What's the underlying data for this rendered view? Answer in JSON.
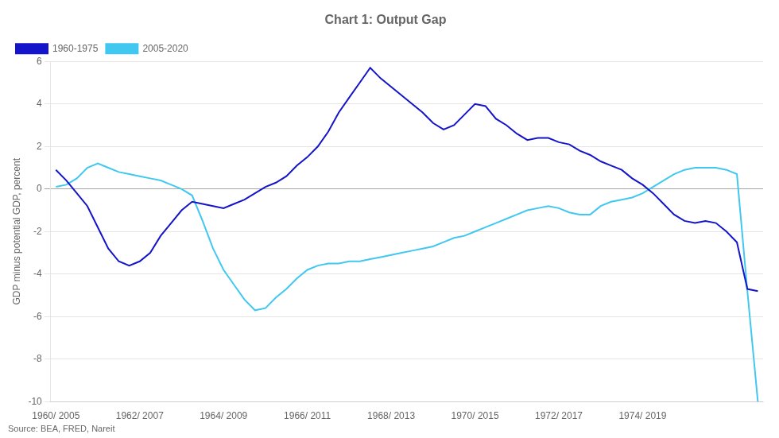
{
  "chart_data": {
    "type": "line",
    "title": "Chart 1: Output Gap",
    "ylabel": "GDP minus potential GDP, percent",
    "annotations": [
      "Source: BEA, FRED, Nareit"
    ],
    "categories": [
      "1960/ 2005",
      null,
      null,
      null,
      null,
      null,
      null,
      null,
      "1962/ 2007",
      null,
      null,
      null,
      null,
      null,
      null,
      null,
      "1964/ 2009",
      null,
      null,
      null,
      null,
      null,
      null,
      null,
      "1966/ 2011",
      null,
      null,
      null,
      null,
      null,
      null,
      null,
      "1968/ 2013",
      null,
      null,
      null,
      null,
      null,
      null,
      null,
      "1970/ 2015",
      null,
      null,
      null,
      null,
      null,
      null,
      null,
      "1972/ 2017",
      null,
      null,
      null,
      null,
      null,
      null,
      null,
      "1974/ 2019",
      null,
      null,
      null,
      null,
      null,
      null,
      null,
      null,
      null,
      null,
      null
    ],
    "series": [
      {
        "name": "1960-1975",
        "color": "#1414c8",
        "values": [
          0.9,
          0.4,
          -0.2,
          -0.8,
          -1.8,
          -2.8,
          -3.4,
          -3.6,
          -3.4,
          -3.0,
          -2.2,
          -1.6,
          -1.0,
          -0.6,
          -0.7,
          -0.8,
          -0.9,
          -0.7,
          -0.5,
          -0.2,
          0.1,
          0.3,
          0.6,
          1.1,
          1.5,
          2.0,
          2.7,
          3.6,
          4.3,
          5.0,
          5.7,
          5.2,
          4.8,
          4.4,
          4.0,
          3.6,
          3.1,
          2.8,
          3.0,
          3.5,
          4.0,
          3.9,
          3.3,
          3.0,
          2.6,
          2.3,
          2.4,
          2.4,
          2.2,
          2.1,
          1.8,
          1.6,
          1.3,
          1.1,
          0.9,
          0.5,
          0.2,
          -0.2,
          -0.7,
          -1.2,
          -1.5,
          -1.6,
          -1.5,
          -1.6,
          -2.0,
          -2.5,
          -4.7,
          -4.8
        ]
      },
      {
        "name": "2005-2020",
        "color": "#40c8f0",
        "values": [
          0.1,
          0.2,
          0.5,
          1.0,
          1.2,
          1.0,
          0.8,
          0.7,
          0.6,
          0.5,
          0.4,
          0.2,
          0.0,
          -0.3,
          -1.5,
          -2.8,
          -3.8,
          -4.5,
          -5.2,
          -5.7,
          -5.6,
          -5.1,
          -4.7,
          -4.2,
          -3.8,
          -3.6,
          -3.5,
          -3.5,
          -3.4,
          -3.4,
          -3.3,
          -3.2,
          -3.1,
          -3.0,
          -2.9,
          -2.8,
          -2.7,
          -2.5,
          -2.3,
          -2.2,
          -2.0,
          -1.8,
          -1.6,
          -1.4,
          -1.2,
          -1.0,
          -0.9,
          -0.8,
          -0.9,
          -1.1,
          -1.2,
          -1.2,
          -0.8,
          -0.6,
          -0.5,
          -0.4,
          -0.2,
          0.1,
          0.4,
          0.7,
          0.9,
          1.0,
          1.0,
          1.0,
          0.9,
          0.7,
          -4.8,
          -10.0
        ]
      }
    ],
    "ylim": [
      -10,
      6
    ],
    "yticks": [
      -10,
      -8,
      -6,
      -4,
      -2,
      0,
      2,
      4,
      6
    ],
    "grid": true,
    "legend": "upper left"
  }
}
